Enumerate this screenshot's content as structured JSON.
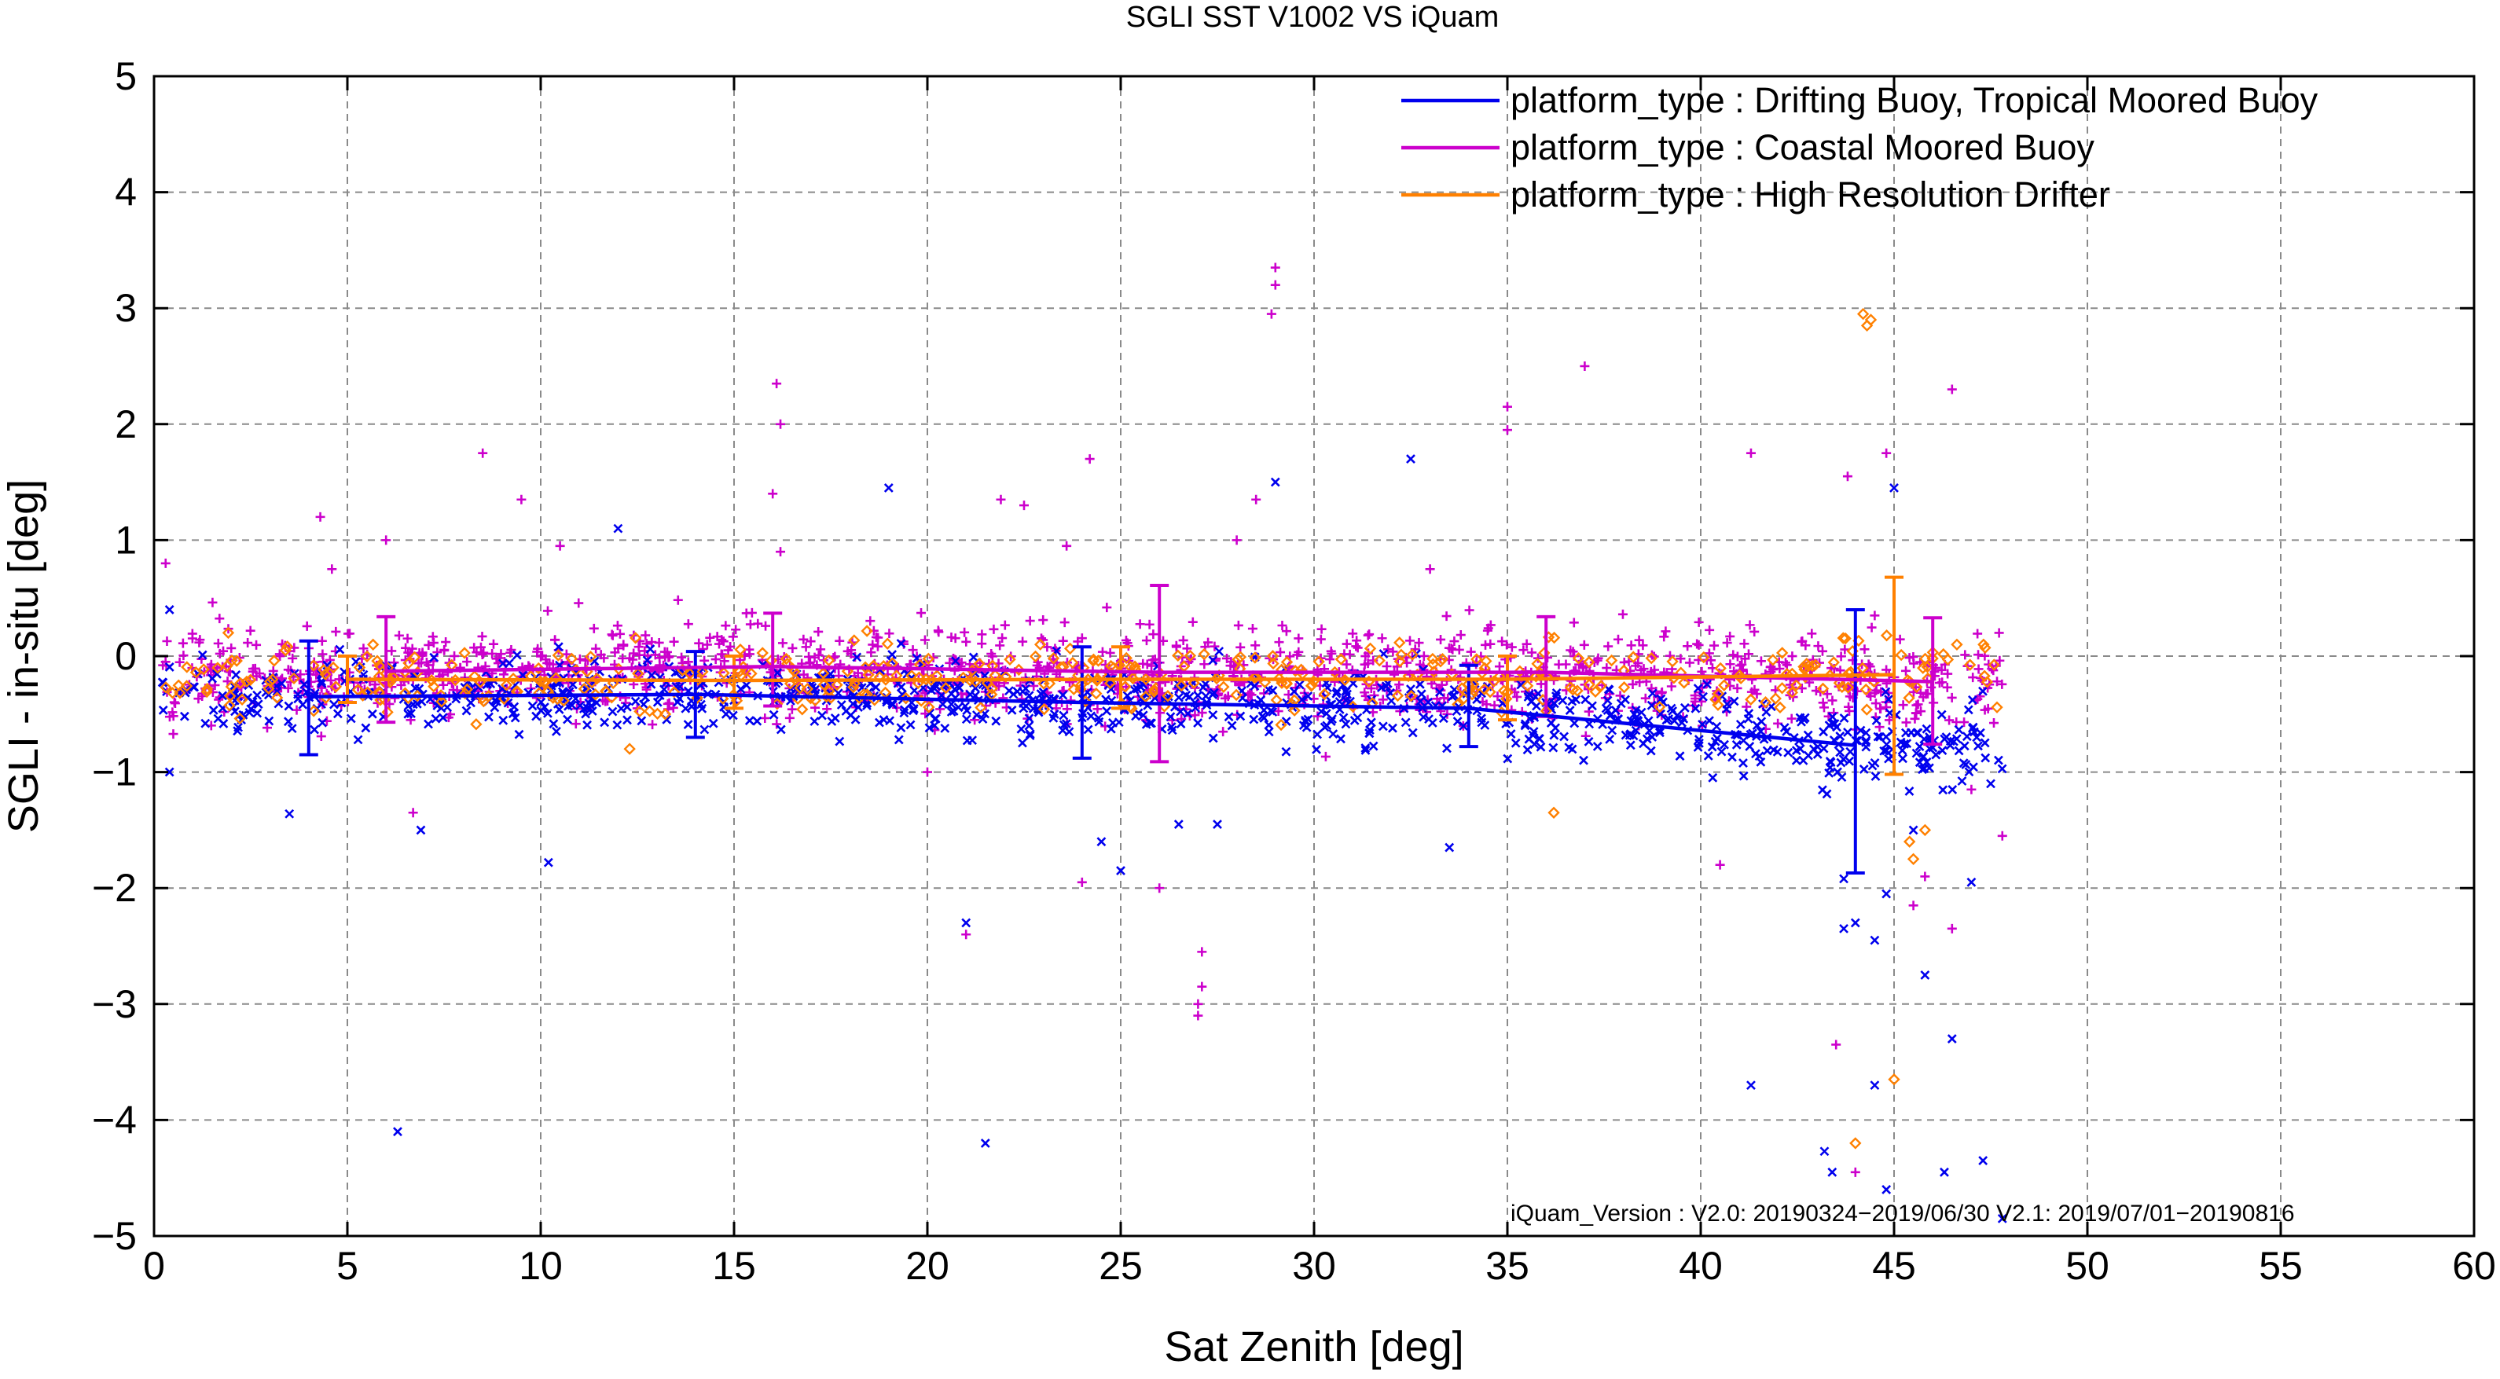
{
  "chart_data": {
    "type": "scatter",
    "title": "SGLI SST V1002 VS iQuam",
    "xlabel": "Sat Zenith [deg]",
    "ylabel": "SGLI - in-situ [deg]",
    "xlim": [
      0,
      60
    ],
    "ylim": [
      -5,
      5
    ],
    "xticks": [
      0,
      5,
      10,
      15,
      20,
      25,
      30,
      35,
      40,
      45,
      50,
      55,
      60
    ],
    "yticks": [
      -5,
      -4,
      -3,
      -2,
      -1,
      0,
      1,
      2,
      3,
      4,
      5
    ],
    "xtick_labels": [
      "0",
      "5",
      "10",
      "15",
      "20",
      "25",
      "30",
      "35",
      "40",
      "45",
      "50",
      "55",
      "60"
    ],
    "ytick_labels": [
      "−5",
      "−4",
      "−3",
      "−2",
      "−1",
      "0",
      "1",
      "2",
      "3",
      "4",
      "5"
    ],
    "grid": true,
    "legend_position": "top-right",
    "annotation": "iQuam_Version :  V2.0: 20190324−2019/06/30 V2.1: 2019/07/01−20190816",
    "series": [
      {
        "name": "platform_type : Drifting Buoy, Tropical Moored Buoy",
        "color": "#0000ee",
        "marker": "x",
        "mean_x": [
          4,
          14,
          24,
          34,
          44
        ],
        "mean_y": [
          -0.35,
          -0.33,
          -0.4,
          -0.45,
          -0.77
        ],
        "err_low": [
          -0.85,
          -0.7,
          -0.88,
          -0.78,
          -1.87
        ],
        "err_high": [
          0.13,
          0.04,
          0.08,
          -0.08,
          0.4
        ],
        "outliers": [
          [
            0.4,
            -1.0
          ],
          [
            0.4,
            0.4
          ],
          [
            3.5,
            -1.36
          ],
          [
            6.3,
            -4.1
          ],
          [
            6.9,
            -1.5
          ],
          [
            10.2,
            -1.78
          ],
          [
            12.0,
            1.1
          ],
          [
            19.0,
            1.45
          ],
          [
            21.0,
            -2.3
          ],
          [
            21.5,
            -4.2
          ],
          [
            24.5,
            -1.6
          ],
          [
            25.0,
            -1.85
          ],
          [
            26.5,
            -1.45
          ],
          [
            27.5,
            -1.45
          ],
          [
            29.0,
            1.5
          ],
          [
            32.5,
            1.7
          ],
          [
            33.5,
            -1.65
          ],
          [
            41.3,
            -3.7
          ],
          [
            43.2,
            -4.27
          ],
          [
            43.4,
            -4.45
          ],
          [
            43.7,
            -1.92
          ],
          [
            43.7,
            -2.35
          ],
          [
            44.0,
            -2.3
          ],
          [
            44.5,
            -2.45
          ],
          [
            44.5,
            -3.7
          ],
          [
            44.8,
            -2.05
          ],
          [
            44.8,
            -4.6
          ],
          [
            45.0,
            1.45
          ],
          [
            45.5,
            -1.5
          ],
          [
            45.8,
            -2.75
          ],
          [
            46.3,
            -4.45
          ],
          [
            46.5,
            -3.3
          ],
          [
            47.0,
            -1.95
          ],
          [
            47.3,
            -4.35
          ],
          [
            47.8,
            -4.85
          ],
          [
            47.5,
            -1.1
          ]
        ]
      },
      {
        "name": "platform_type : Coastal Moored Buoy",
        "color": "#cc00cc",
        "marker": "+",
        "mean_x": [
          6,
          16,
          26,
          36,
          46
        ],
        "mean_y": [
          -0.13,
          -0.09,
          -0.14,
          -0.14,
          -0.22
        ],
        "err_low": [
          -0.57,
          -0.43,
          -0.91,
          -0.52,
          -0.76
        ],
        "err_high": [
          0.34,
          0.37,
          0.61,
          0.34,
          0.33
        ],
        "outliers": [
          [
            0.3,
            0.8
          ],
          [
            4.3,
            1.2
          ],
          [
            4.6,
            0.75
          ],
          [
            6.0,
            1.0
          ],
          [
            6.7,
            -1.35
          ],
          [
            8.5,
            1.75
          ],
          [
            9.5,
            1.35
          ],
          [
            10.5,
            0.95
          ],
          [
            16.1,
            2.35
          ],
          [
            16.2,
            2.0
          ],
          [
            16.0,
            1.4
          ],
          [
            16.2,
            0.9
          ],
          [
            20.0,
            -1.0
          ],
          [
            21.0,
            -2.4
          ],
          [
            21.9,
            1.35
          ],
          [
            22.5,
            1.3
          ],
          [
            23.6,
            0.95
          ],
          [
            24.0,
            -1.95
          ],
          [
            24.2,
            1.7
          ],
          [
            26.0,
            -2.0
          ],
          [
            27.0,
            -3.0
          ],
          [
            27.0,
            -3.1
          ],
          [
            27.1,
            -2.85
          ],
          [
            27.1,
            -2.55
          ],
          [
            28.0,
            1.0
          ],
          [
            28.5,
            1.35
          ],
          [
            29.0,
            3.35
          ],
          [
            29.0,
            3.2
          ],
          [
            28.9,
            2.95
          ],
          [
            33.0,
            0.75
          ],
          [
            35.0,
            2.15
          ],
          [
            35.0,
            1.95
          ],
          [
            37.0,
            2.5
          ],
          [
            40.5,
            -1.8
          ],
          [
            41.3,
            1.75
          ],
          [
            43.5,
            -3.35
          ],
          [
            43.8,
            1.55
          ],
          [
            44.0,
            -4.45
          ],
          [
            44.8,
            1.75
          ],
          [
            44.5,
            0.35
          ],
          [
            45.5,
            -2.15
          ],
          [
            45.8,
            -1.9
          ],
          [
            46.5,
            -2.35
          ],
          [
            46.5,
            2.3
          ],
          [
            47.0,
            -1.15
          ],
          [
            47.8,
            -1.55
          ]
        ]
      },
      {
        "name": "platform_type : High Resolution Drifter",
        "color": "#ff8000",
        "marker": "diamond",
        "mean_x": [
          5,
          15,
          25,
          35,
          45
        ],
        "mean_y": [
          -0.2,
          -0.21,
          -0.2,
          -0.2,
          -0.16
        ],
        "err_low": [
          -0.4,
          -0.45,
          -0.45,
          -0.55,
          -1.02
        ],
        "err_high": [
          0.0,
          0.0,
          0.08,
          0.0,
          0.68
        ],
        "outliers": [
          [
            3.4,
            0.05
          ],
          [
            12.3,
            -0.8
          ],
          [
            36.2,
            -1.35
          ],
          [
            44.2,
            2.95
          ],
          [
            44.3,
            2.85
          ],
          [
            44.4,
            2.9
          ],
          [
            44.0,
            -4.2
          ],
          [
            45.0,
            -3.65
          ],
          [
            45.4,
            -1.6
          ],
          [
            45.5,
            -1.75
          ],
          [
            45.8,
            -1.5
          ]
        ]
      }
    ]
  }
}
